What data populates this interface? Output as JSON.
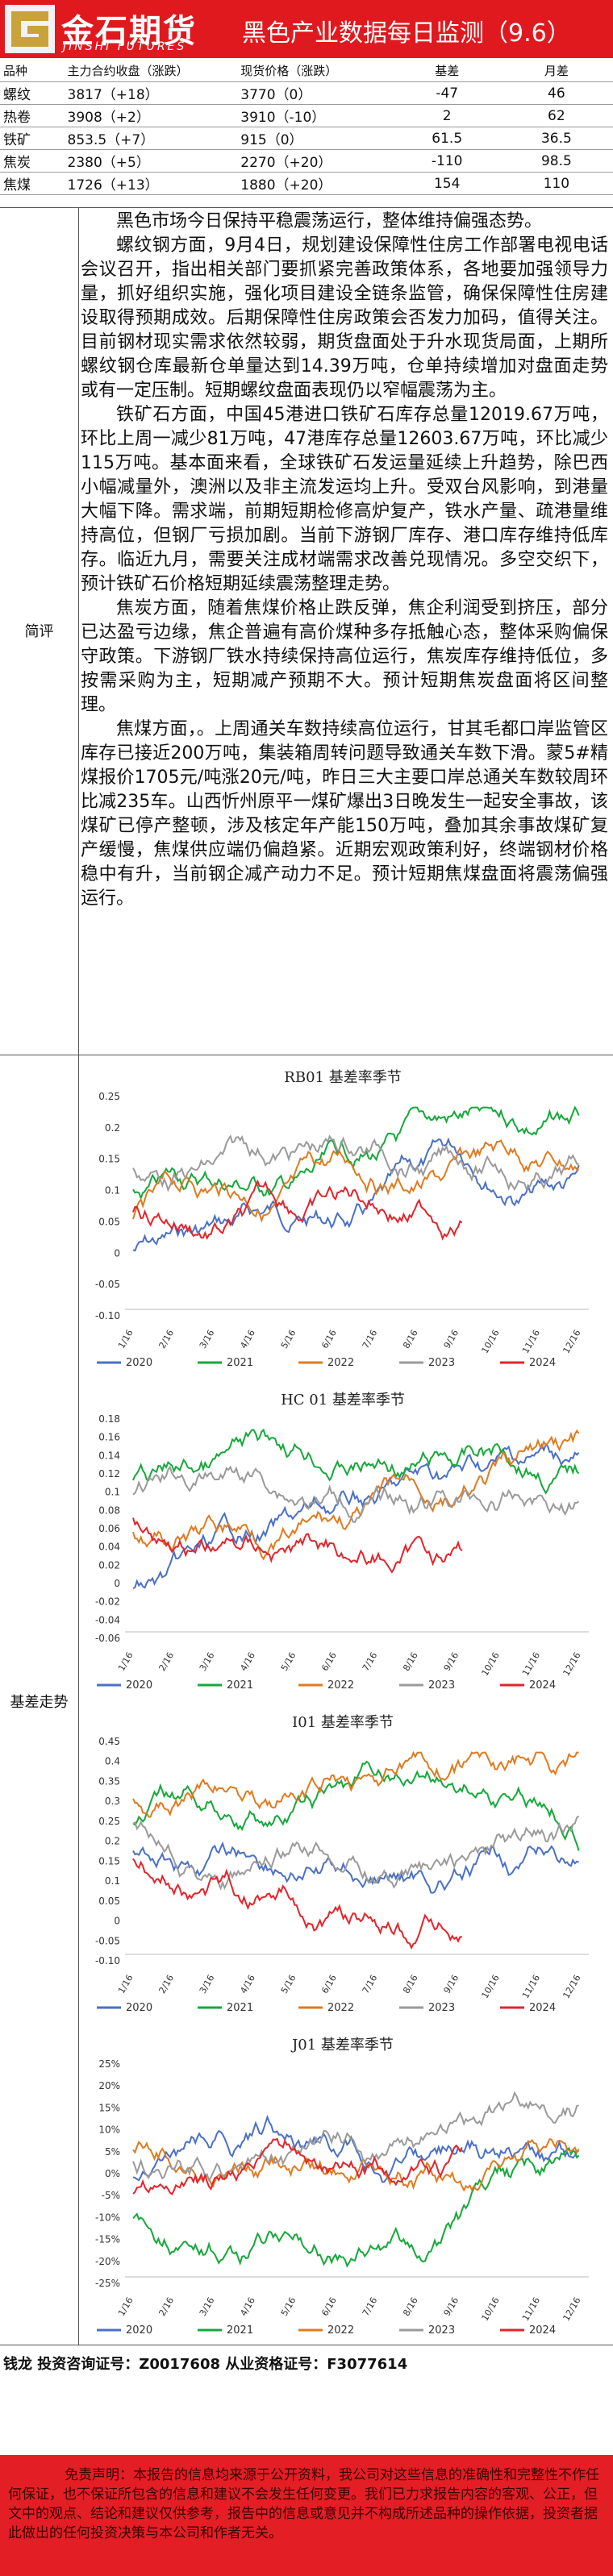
{
  "header": {
    "logo_cn": "金石期货",
    "logo_en": "JINSHI FUTURES",
    "title": "黑色产业数据每日监测（9.6）"
  },
  "summary_table": {
    "headers": [
      "品种",
      "主力合约收盘（涨跌）",
      "现货价格（涨跌）",
      "基差",
      "月差"
    ],
    "rows": [
      [
        "螺纹",
        "3817（+18）",
        "3770（0）",
        "-47",
        "46"
      ],
      [
        "热卷",
        "3908（+2）",
        "3910（-10）",
        "2",
        "62"
      ],
      [
        "铁矿",
        "853.5（+7）",
        "915（0）",
        "61.5",
        "36.5"
      ],
      [
        "焦炭",
        "2380（+5）",
        "2270（+20）",
        "-110",
        "98.5"
      ],
      [
        "焦煤",
        "1726（+13）",
        "1880（+20）",
        "154",
        "110"
      ]
    ]
  },
  "brief": {
    "label": "简评",
    "paragraphs": [
      "黑色市场今日保持平稳震荡运行，整体维持偏强态势。",
      "螺纹钢方面，9月4日，规划建设保障性住房工作部署电视电话会议召开，指出相关部门要抓紧完善政策体系，各地要加强领导力量，抓好组织实施，强化项目建设全链条监管，确保保障性住房建设取得预期成效。后期保障性住房政策会否发力加码，值得关注。目前钢材现实需求依然较弱，期货盘面处于升水现货局面，上期所螺纹钢仓库最新仓单量达到14.39万吨，仓单持续增加对盘面走势或有一定压制。短期螺纹盘面表现仍以窄幅震荡为主。",
      "铁矿石方面，中国45港进口铁矿石库存总量12019.67万吨，环比上周一减少81万吨，47港库存总量12603.67万吨，环比减少115万吨。基本面来看，全球铁矿石发运量延续上升趋势，除巴西小幅减量外，澳洲以及非主流发运均上升。受双台风影响，到港量大幅下降。需求端，前期短期检修高炉复产，铁水产量、疏港量维持高位，但钢厂亏损加剧。当前下游钢厂库存、港口库存维持低库存。临近九月，需要关注成材端需求改善兑现情况。多空交织下，预计铁矿石价格短期延续震荡整理走势。",
      "焦炭方面，随着焦煤价格止跌反弹，焦企利润受到挤压，部分已达盈亏边缘，焦企普遍有高价煤种多存抵触心态，整体采购偏保守政策。下游钢厂铁水持续保持高位运行，焦炭库存维持低位，多按需采购为主，短期减产预期不大。预计短期焦炭盘面将区间整理。",
      "焦煤方面，。上周通关车数持续高位运行，甘其毛都口岸监管区库存已接近200万吨，集装箱周转问题导致通关车数下滑。蒙5#精煤报价1705元/吨涨20元/吨，昨日三大主要口岸总通关车数较周环比减235车。山西忻州原平一煤矿爆出3日晚发生一起安全事故，该煤矿已停产整顿，涉及核定年产能150万吨，叠加其余事故煤矿复产缓慢，焦煤供应端仍偏趋紧。近期宏观政策利好，终端钢材价格稳中有升，当前钢企减产动力不足。预计短期焦煤盘面将震荡偏强运行。"
    ]
  },
  "basis_section": {
    "label": "基差走势"
  },
  "x_ticks": [
    "1/16",
    "2/16",
    "3/16",
    "4/16",
    "5/16",
    "6/16",
    "7/16",
    "8/16",
    "9/16",
    "10/16",
    "11/16",
    "12/16"
  ],
  "colors": {
    "2020": "#4a6fc7",
    "2021": "#15a83a",
    "2022": "#e07a1f",
    "2023": "#9a9a9a",
    "2024": "#e3242b",
    "hc2022": "#2050b0",
    "i2021": "#2e7d32",
    "i2022": "#2040a0",
    "i2023": "#e07a1f",
    "i2024": "#e3242b",
    "j2022": "#e07a1f"
  },
  "charts": [
    {
      "title": "RB01 基差率季节",
      "y_ticks": [
        "0.25",
        "0.2",
        "0.15",
        "0.1",
        "0.05",
        "0",
        "-0.05",
        "-0.10"
      ],
      "legend": [
        "2020",
        "2021",
        "2022",
        "2023",
        "2024"
      ]
    },
    {
      "title": "HC 01 基差率季节",
      "y_ticks": [
        "0.18",
        "0.16",
        "0.14",
        "0.12",
        "0.1",
        "0.08",
        "0.06",
        "0.04",
        "0.02",
        "0",
        "-0.02",
        "-0.04",
        "-0.06"
      ],
      "legend": [
        "2020",
        "2021",
        "2022",
        "2023",
        "2024"
      ]
    },
    {
      "title": "I01 基差率季节",
      "y_ticks": [
        "0.45",
        "0.4",
        "0.35",
        "0.3",
        "0.25",
        "0.2",
        "0.15",
        "0.1",
        "0.05",
        "0",
        "-0.05",
        "-0.10"
      ],
      "legend": [
        "2020",
        "2021",
        "2022",
        "2023",
        "2024"
      ]
    },
    {
      "title": "J01 基差率季节",
      "y_ticks": [
        "25%",
        "20%",
        "15%",
        "10%",
        "5%",
        "0%",
        "-5%",
        "-10%",
        "-15%",
        "-20%",
        "-25%"
      ],
      "legend": [
        "2020",
        "2021",
        "2022",
        "2023",
        "2024"
      ]
    }
  ],
  "footer": {
    "signature": "钱龙 投资咨询证号：Z0017608 从业资格证号：F3077614",
    "disclaimer": "免责声明：本报告的信息均来源于公开资料，我公司对这些信息的准确性和完整性不作任何保证，也不保证所包含的信息和建议不会发生任何变更。我们已力求报告内容的客观、公正，但文中的观点、结论和建议仅供参考，报告中的信息或意见并不构成所述品种的操作依据，投资者据此做出的任何投资决策与本公司和作者无关。"
  }
}
